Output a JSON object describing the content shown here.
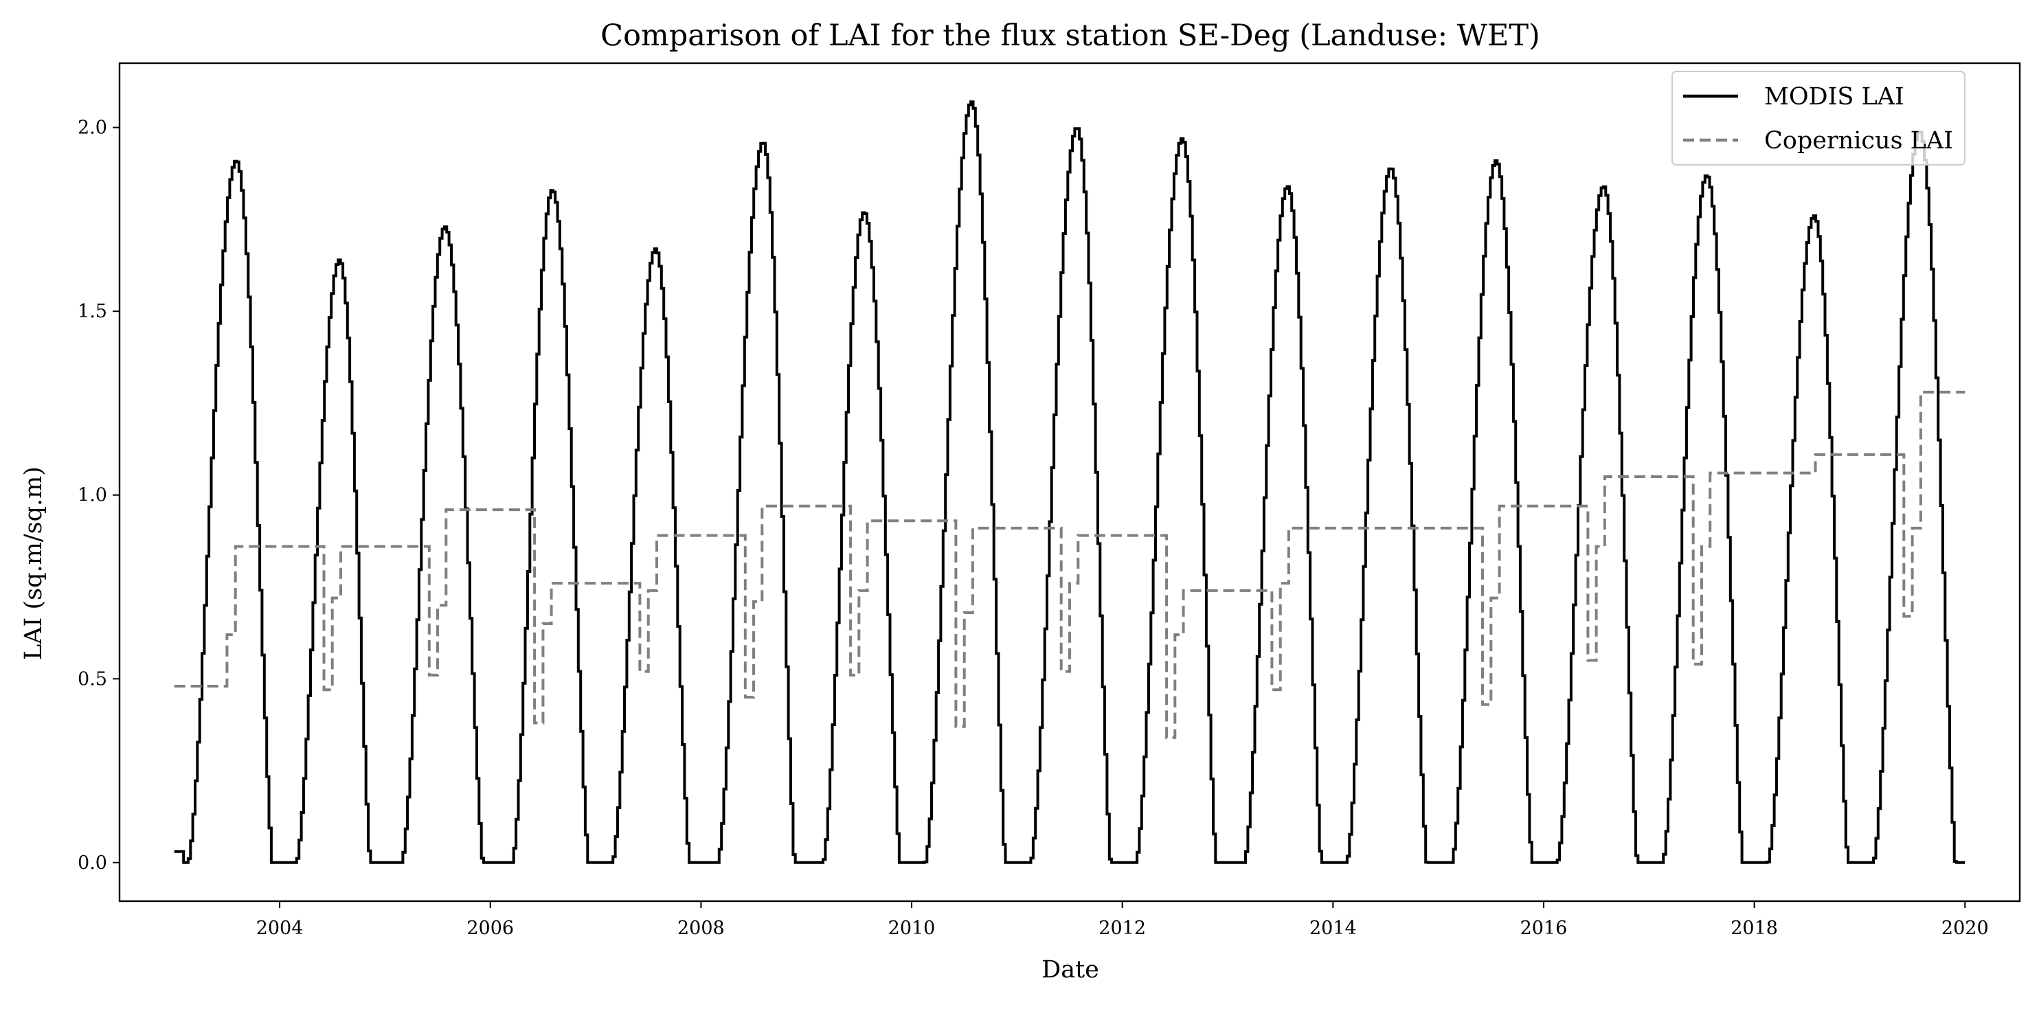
{
  "chart_data": {
    "type": "line",
    "title": "Comparison of LAI for the flux station SE-Deg (Landuse: WET)",
    "xlabel": "Date",
    "ylabel": "LAI (sq.m/sq.m)",
    "xlim": [
      2002.48,
      2020.52
    ],
    "ylim": [
      -0.105,
      2.175
    ],
    "x_ticks": [
      2004,
      2006,
      2008,
      2010,
      2012,
      2014,
      2016,
      2018,
      2020
    ],
    "x_tick_labels": [
      "2004",
      "2006",
      "2008",
      "2010",
      "2012",
      "2014",
      "2016",
      "2018",
      "2020"
    ],
    "y_ticks": [
      0.0,
      0.5,
      1.0,
      1.5,
      2.0
    ],
    "y_tick_labels": [
      "0.0",
      "0.5",
      "1.0",
      "1.5",
      "2.0"
    ],
    "grid": false,
    "legend_position": "top-right",
    "series": [
      {
        "name": "MODIS LAI",
        "style": "solid",
        "color": "#000000",
        "yearly_cycles": [
          {
            "year": 2003,
            "peak": 1.91,
            "peak_x": 2003.58,
            "start": 2003.12,
            "end": 2003.92
          },
          {
            "year": 2004,
            "peak": 1.64,
            "peak_x": 2004.56,
            "start": 2004.15,
            "end": 2004.85
          },
          {
            "year": 2005,
            "peak": 1.73,
            "peak_x": 2005.56,
            "start": 2005.15,
            "end": 2005.92
          },
          {
            "year": 2006,
            "peak": 1.83,
            "peak_x": 2006.58,
            "start": 2006.2,
            "end": 2006.92
          },
          {
            "year": 2007,
            "peak": 1.67,
            "peak_x": 2007.56,
            "start": 2007.15,
            "end": 2007.88
          },
          {
            "year": 2008,
            "peak": 1.96,
            "peak_x": 2008.58,
            "start": 2008.15,
            "end": 2008.88
          },
          {
            "year": 2009,
            "peak": 1.77,
            "peak_x": 2009.54,
            "start": 2009.15,
            "end": 2009.88
          },
          {
            "year": 2010,
            "peak": 2.07,
            "peak_x": 2010.56,
            "start": 2010.12,
            "end": 2010.88
          },
          {
            "year": 2011,
            "peak": 2.0,
            "peak_x": 2011.56,
            "start": 2011.12,
            "end": 2011.88
          },
          {
            "year": 2012,
            "peak": 1.97,
            "peak_x": 2012.56,
            "start": 2012.12,
            "end": 2012.88
          },
          {
            "year": 2013,
            "peak": 1.84,
            "peak_x": 2013.56,
            "start": 2013.15,
            "end": 2013.88
          },
          {
            "year": 2014,
            "peak": 1.89,
            "peak_x": 2014.54,
            "start": 2014.12,
            "end": 2014.88
          },
          {
            "year": 2015,
            "peak": 1.91,
            "peak_x": 2015.54,
            "start": 2015.12,
            "end": 2015.88
          },
          {
            "year": 2016,
            "peak": 1.84,
            "peak_x": 2016.56,
            "start": 2016.12,
            "end": 2016.88
          },
          {
            "year": 2017,
            "peak": 1.87,
            "peak_x": 2017.54,
            "start": 2017.12,
            "end": 2017.88
          },
          {
            "year": 2018,
            "peak": 1.76,
            "peak_x": 2018.56,
            "start": 2018.12,
            "end": 2018.88
          },
          {
            "year": 2019,
            "peak": 1.99,
            "peak_x": 2019.56,
            "start": 2019.12,
            "end": 2019.9
          }
        ],
        "x_range": [
          2003.0,
          2020.0
        ]
      },
      {
        "name": "Copernicus LAI",
        "style": "dashed",
        "color": "#808080",
        "x": [
          2003.0,
          2003.42,
          2003.5,
          2003.58,
          2004.35,
          2004.42,
          2004.5,
          2004.58,
          2005.35,
          2005.42,
          2005.5,
          2005.58,
          2006.35,
          2006.42,
          2006.5,
          2006.58,
          2007.35,
          2007.42,
          2007.5,
          2007.58,
          2008.35,
          2008.42,
          2008.5,
          2008.58,
          2009.35,
          2009.42,
          2009.5,
          2009.58,
          2010.35,
          2010.42,
          2010.5,
          2010.58,
          2011.35,
          2011.42,
          2011.5,
          2011.58,
          2012.35,
          2012.42,
          2012.5,
          2012.58,
          2013.35,
          2013.42,
          2013.5,
          2013.58,
          2015.35,
          2015.42,
          2015.5,
          2015.58,
          2016.35,
          2016.42,
          2016.5,
          2016.58,
          2017.35,
          2017.42,
          2017.5,
          2017.58,
          2018.48,
          2018.58,
          2019.35,
          2019.42,
          2019.5,
          2019.58,
          2020.0
        ],
        "values": [
          0.48,
          0.48,
          0.62,
          0.86,
          0.86,
          0.47,
          0.72,
          0.86,
          0.86,
          0.51,
          0.7,
          0.96,
          0.96,
          0.38,
          0.65,
          0.76,
          0.76,
          0.52,
          0.74,
          0.89,
          0.89,
          0.45,
          0.71,
          0.97,
          0.97,
          0.51,
          0.74,
          0.93,
          0.93,
          0.37,
          0.68,
          0.91,
          0.91,
          0.52,
          0.76,
          0.89,
          0.89,
          0.34,
          0.62,
          0.74,
          0.74,
          0.47,
          0.76,
          0.91,
          0.91,
          0.43,
          0.72,
          0.97,
          0.97,
          0.55,
          0.86,
          1.05,
          1.05,
          0.54,
          0.86,
          1.06,
          1.06,
          1.11,
          1.11,
          0.67,
          0.91,
          1.28,
          1.28
        ]
      }
    ]
  }
}
